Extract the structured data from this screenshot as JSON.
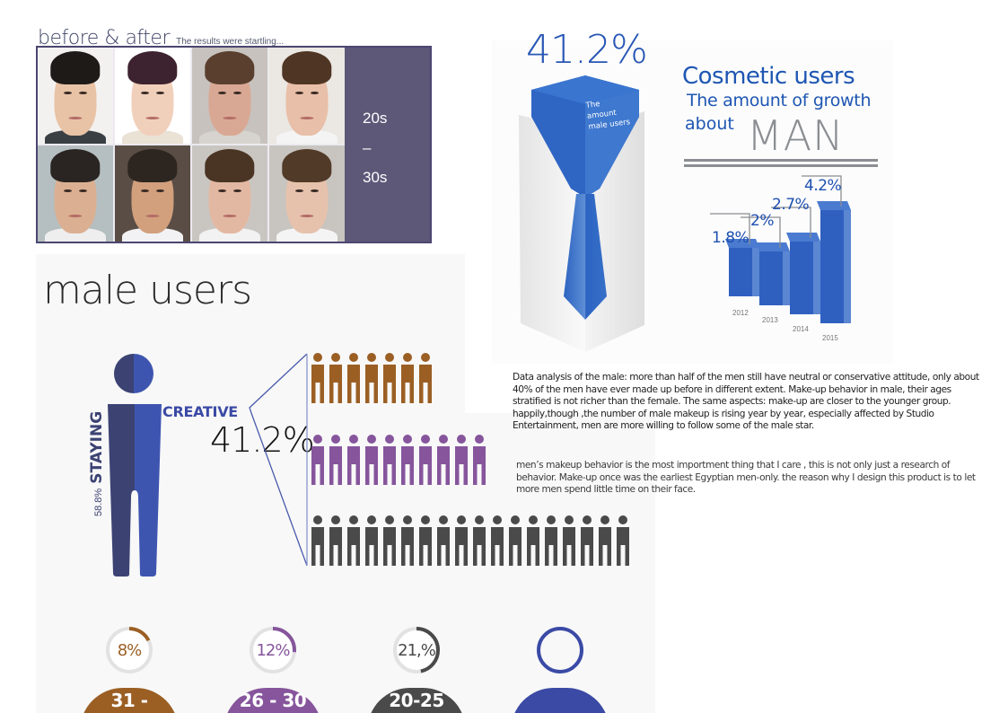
{
  "before_after": {
    "title": "before & after",
    "subtitle": "The results were startling...",
    "age_range": {
      "from": "20s",
      "dash": "–",
      "to": "30s"
    },
    "photos": [
      {
        "skin": "#e8c3a6",
        "hair": "#1e1a18",
        "bg": "#f3f1ef",
        "shirt": "#3a3f44"
      },
      {
        "skin": "#f1d0bb",
        "hair": "#3d2230",
        "bg": "#ffffff",
        "shirt": "#e9e2d5"
      },
      {
        "skin": "#d9a894",
        "hair": "#5a3f2f",
        "bg": "#c7c2bd",
        "shirt": "#d7d3ce"
      },
      {
        "skin": "#e8bfa8",
        "hair": "#4f3524",
        "bg": "#ebe7e2",
        "shirt": "#f4f4f4"
      },
      {
        "skin": "#dbb092",
        "hair": "#2a2522",
        "bg": "#b5bec0",
        "shirt": "#eeeeee"
      },
      {
        "skin": "#d2a07d",
        "hair": "#2d2520",
        "bg": "#5a4d45",
        "shirt": "#f2f2f4"
      },
      {
        "skin": "#e3b8a2",
        "hair": "#4a3424",
        "bg": "#c9c6c2",
        "shirt": "#f2f2f2"
      },
      {
        "skin": "#e6c2ad",
        "hair": "#523a28",
        "bg": "#c8c4bf",
        "shirt": "#f4f4f4"
      }
    ]
  },
  "male_users": {
    "title": "male users",
    "staying_pct": "58.8%",
    "staying_label": "STAYING",
    "creative_label": "CREATIVE",
    "creative_pct": "41.2%",
    "rows": [
      {
        "color": "#9b5f24",
        "count": 7
      },
      {
        "color": "#86559c",
        "count": 10
      },
      {
        "color": "#4a4a4a",
        "count": 18
      }
    ],
    "age_groups": [
      {
        "pct": "8%",
        "range": "31 -",
        "color": "#9b5f24",
        "value": 8
      },
      {
        "pct": "12%",
        "range": "26 - 30",
        "color": "#86559c",
        "value": 12
      },
      {
        "pct": "21.2%",
        "pct_display": "21,%",
        "range": "20-25",
        "color": "#4a4a4a",
        "value": 21.2
      },
      {
        "pct": "",
        "range": "",
        "color": "#3a4aa5",
        "value": 100
      }
    ]
  },
  "tie_graphic": {
    "pct": "41.2%",
    "caption_lines": [
      "The",
      "amount",
      "male users"
    ]
  },
  "cosmetic": {
    "title": "Cosmetic users",
    "subtitle": "The amount of growth",
    "about": "about",
    "man": "MAN"
  },
  "chart_data": {
    "type": "bar",
    "title": "Cosmetic users — The amount of growth about MAN",
    "categories": [
      "2012",
      "2013",
      "2014",
      "2015"
    ],
    "values": [
      1.8,
      2,
      2.7,
      4.2
    ],
    "labels": [
      "1.8%",
      "2%",
      "2.7%",
      "4.2%"
    ],
    "xlabel": "",
    "ylabel": "",
    "grid": false
  },
  "text": {
    "analysis": "Data analysis of the male: more than half of the men still have neutral or conservative attitude, only about 40% of the men have ever made up before in different extent. Make-up behavior in male, their ages stratified is not richer than the female. The same aspects: make-up are closer to the younger group. happily,though ,the number of male makeup is rising year by year, especially affected by Studio Entertainment, men are more willing to follow some of the male star.",
    "note": "men’s makeup behavior is the most importment thing that I care , this is not only just a research of behavior. Make-up once was the earliest Egyptian men-only. the reason why I design this product  is to let more men spend little time on their face."
  }
}
